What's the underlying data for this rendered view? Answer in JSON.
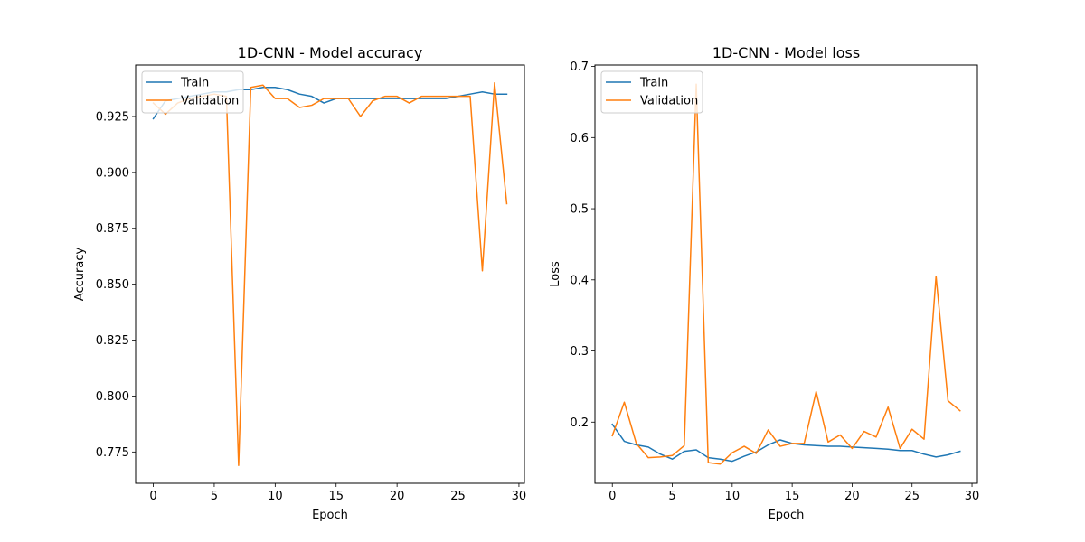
{
  "chart_data": [
    {
      "type": "line",
      "title": "1D-CNN - Model accuracy",
      "xlabel": "Epoch",
      "ylabel": "Accuracy",
      "xlim": [
        -1.45,
        30.45
      ],
      "ylim": [
        0.761,
        0.948
      ],
      "xticks": [
        0,
        5,
        10,
        15,
        20,
        25,
        30
      ],
      "yticks": [
        0.775,
        0.8,
        0.825,
        0.85,
        0.875,
        0.9,
        0.925
      ],
      "ytick_labels": [
        "0.775",
        "0.800",
        "0.825",
        "0.850",
        "0.875",
        "0.900",
        "0.925"
      ],
      "legend": "top-left",
      "grid": false,
      "x": [
        0,
        1,
        2,
        3,
        4,
        5,
        6,
        7,
        8,
        9,
        10,
        11,
        12,
        13,
        14,
        15,
        16,
        17,
        18,
        19,
        20,
        21,
        22,
        23,
        24,
        25,
        26,
        27,
        28,
        29
      ],
      "series": [
        {
          "name": "Train",
          "color": "#1f77b4",
          "values": [
            0.924,
            0.932,
            0.933,
            0.934,
            0.935,
            0.936,
            0.936,
            0.937,
            0.937,
            0.938,
            0.938,
            0.937,
            0.935,
            0.934,
            0.931,
            0.933,
            0.933,
            0.933,
            0.933,
            0.933,
            0.933,
            0.933,
            0.933,
            0.933,
            0.933,
            0.934,
            0.935,
            0.936,
            0.935,
            0.935
          ]
        },
        {
          "name": "Validation",
          "color": "#ff7f0e",
          "values": [
            0.931,
            0.926,
            0.931,
            0.933,
            0.934,
            0.935,
            0.934,
            0.769,
            0.938,
            0.939,
            0.933,
            0.933,
            0.929,
            0.93,
            0.933,
            0.933,
            0.933,
            0.925,
            0.932,
            0.934,
            0.934,
            0.931,
            0.934,
            0.934,
            0.934,
            0.934,
            0.934,
            0.856,
            0.94,
            0.886
          ]
        }
      ]
    },
    {
      "type": "line",
      "title": "1D-CNN - Model loss",
      "xlabel": "Epoch",
      "ylabel": "Loss",
      "xlim": [
        -1.45,
        30.45
      ],
      "ylim": [
        0.114,
        0.702
      ],
      "xticks": [
        0,
        5,
        10,
        15,
        20,
        25,
        30
      ],
      "yticks": [
        0.2,
        0.3,
        0.4,
        0.5,
        0.6,
        0.7
      ],
      "ytick_labels": [
        "0.2",
        "0.3",
        "0.4",
        "0.5",
        "0.6",
        "0.7"
      ],
      "legend": "top-left",
      "grid": false,
      "x": [
        0,
        1,
        2,
        3,
        4,
        5,
        6,
        7,
        8,
        9,
        10,
        11,
        12,
        13,
        14,
        15,
        16,
        17,
        18,
        19,
        20,
        21,
        22,
        23,
        24,
        25,
        26,
        27,
        28,
        29
      ],
      "series": [
        {
          "name": "Train",
          "color": "#1f77b4",
          "values": [
            0.197,
            0.173,
            0.168,
            0.165,
            0.155,
            0.148,
            0.159,
            0.161,
            0.15,
            0.148,
            0.145,
            0.152,
            0.158,
            0.168,
            0.175,
            0.17,
            0.168,
            0.167,
            0.166,
            0.166,
            0.165,
            0.164,
            0.163,
            0.162,
            0.16,
            0.16,
            0.155,
            0.151,
            0.154,
            0.159
          ]
        },
        {
          "name": "Validation",
          "color": "#ff7f0e",
          "values": [
            0.181,
            0.228,
            0.17,
            0.15,
            0.151,
            0.153,
            0.167,
            0.675,
            0.143,
            0.141,
            0.157,
            0.166,
            0.156,
            0.189,
            0.166,
            0.17,
            0.17,
            0.243,
            0.172,
            0.182,
            0.163,
            0.187,
            0.179,
            0.221,
            0.163,
            0.19,
            0.176,
            0.405,
            0.23,
            0.216
          ]
        }
      ]
    }
  ]
}
